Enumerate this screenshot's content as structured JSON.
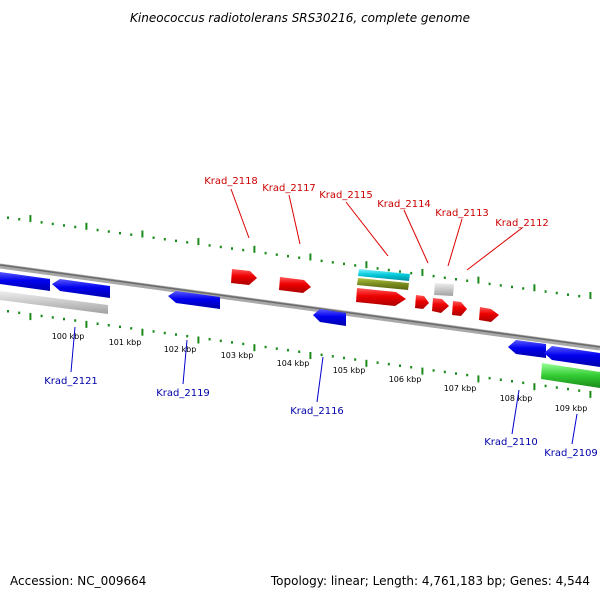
{
  "title": "Kineococcus radiotolerans SRS30216, complete genome",
  "footer": {
    "accession": "Accession: NC_009664",
    "summary": "Topology: linear; Length: 4,761,183 bp; Genes: 4,544"
  },
  "kbp_labels": [
    "100 kbp",
    "101 kbp",
    "102 kbp",
    "103 kbp",
    "104 kbp",
    "105 kbp",
    "106 kbp",
    "107 kbp",
    "108 kbp",
    "109 kbp"
  ],
  "genes_forward": [
    {
      "name": "Krad_2118",
      "strand": "forward"
    },
    {
      "name": "Krad_2117",
      "strand": "forward"
    },
    {
      "name": "Krad_2115",
      "strand": "forward"
    },
    {
      "name": "Krad_2114",
      "strand": "forward"
    },
    {
      "name": "Krad_2113",
      "strand": "forward"
    },
    {
      "name": "Krad_2112",
      "strand": "forward"
    }
  ],
  "genes_reverse": [
    {
      "name": "Krad_2121",
      "strand": "reverse"
    },
    {
      "name": "Krad_2119",
      "strand": "reverse"
    },
    {
      "name": "Krad_2116",
      "strand": "reverse"
    },
    {
      "name": "Krad_2110",
      "strand": "reverse"
    },
    {
      "name": "Krad_2109",
      "strand": "reverse"
    }
  ],
  "colors": {
    "forward_gene": "#dd0000",
    "reverse_gene": "#0000dd",
    "forward_label": "#cc0000",
    "reverse_label": "#0000aa",
    "pseudo_gene": "#c8c8c8",
    "rna_cyan": "#00c8d8",
    "rna_olive": "#7a8c1e",
    "rna_green": "#33cc33",
    "backbone": "#888888",
    "ticks": "#1a8a1a"
  }
}
